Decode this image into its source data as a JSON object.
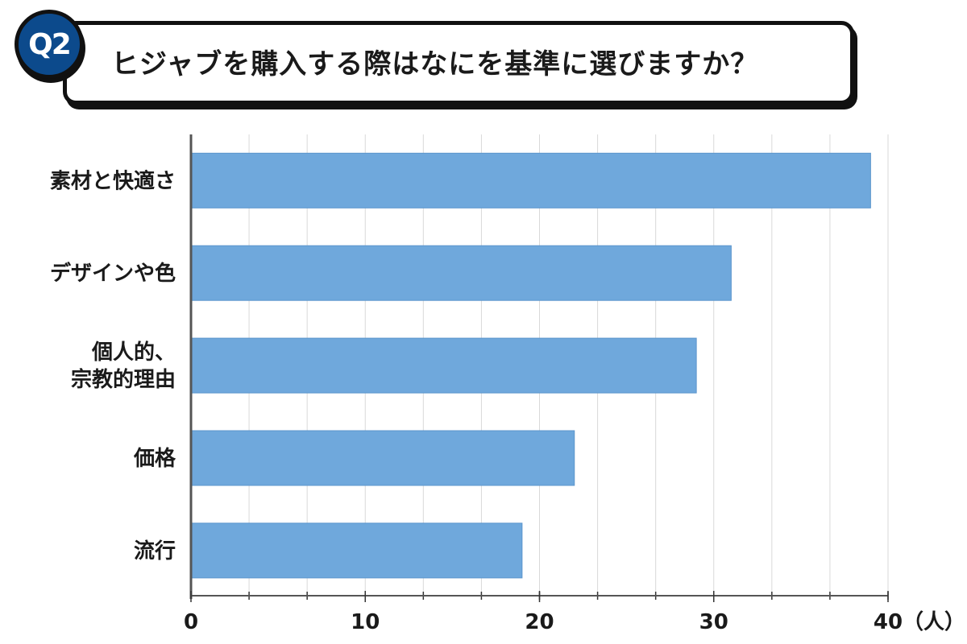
{
  "header": {
    "badge": "Q2",
    "title": "ヒジャブを購入する際はなにを基準に選びますか？"
  },
  "chart_data": {
    "type": "bar",
    "orientation": "horizontal",
    "title": "ヒジャブを購入する際はなにを基準に選びますか？",
    "categories": [
      [
        "素材と快適さ"
      ],
      [
        "デザインや色"
      ],
      [
        "個人的、",
        "宗教的理由"
      ],
      [
        "価格"
      ],
      [
        "流行"
      ]
    ],
    "values": [
      39,
      31,
      29,
      22,
      19
    ],
    "xlim": [
      0,
      40
    ],
    "xticks": [
      "0",
      "10",
      "20",
      "30",
      "40"
    ],
    "xunit": "（人）",
    "grid": true,
    "bar_color": "#6fa8dc"
  }
}
